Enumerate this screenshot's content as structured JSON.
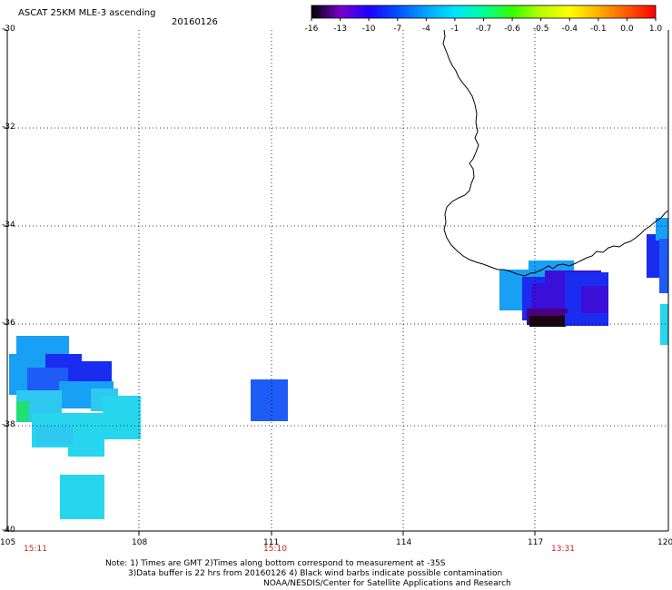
{
  "header": {
    "title": "ASCAT 25KM MLE-3 ascending",
    "date": "20160126"
  },
  "colorbar": {
    "labels": [
      "-16",
      "-13",
      "-10",
      "-7",
      "-4",
      "-1",
      "-0.7",
      "-0.6",
      "-0.5",
      "-0.4",
      "-0.1",
      "0.0",
      "1.0"
    ],
    "colors": [
      "#000000",
      "#7a00cc",
      "#1f00ff",
      "#0050ff",
      "#00a6ff",
      "#00e5ff",
      "#00ff9a",
      "#33ff00",
      "#b8ff00",
      "#ffff00",
      "#ffb000",
      "#ff5a00",
      "#ff0000"
    ]
  },
  "axes": {
    "lat_labels": [
      "-30",
      "-32",
      "-34",
      "-36",
      "-38",
      "-40"
    ],
    "lon_labels": [
      "105",
      "108",
      "111",
      "114",
      "117",
      "120"
    ]
  },
  "times": [
    "15:11",
    "15:10",
    "13:31"
  ],
  "notes": {
    "line1": "Note: 1) Times are GMT 2)Times along bottom correspond to measurement at -35S",
    "line2": "3)Data buffer is 22 hrs from 20160126 4) Black wind barbs indicate possible contamination",
    "line3": "NOAA/NESDIS/Center for Satellite Applications and Research"
  },
  "map_colors": {
    "deep_black": "#1a0510",
    "purple": "#4a0080",
    "violet": "#3a10d8",
    "blue": "#1a2cf0",
    "med_blue": "#1f5cf5",
    "sky_blue": "#18a0f5",
    "light_blue": "#2ec8f0",
    "cyan": "#27d6ee",
    "green": "#22e070"
  }
}
